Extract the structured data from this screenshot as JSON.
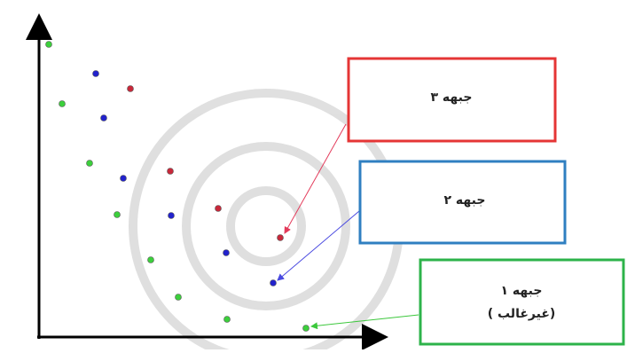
{
  "fronts": [
    {
      "label": "جبهه ۳"
    },
    {
      "label": "جبهه ۲"
    },
    {
      "label": "جبهه ۱",
      "note": "(غیرغالب )"
    }
  ]
}
